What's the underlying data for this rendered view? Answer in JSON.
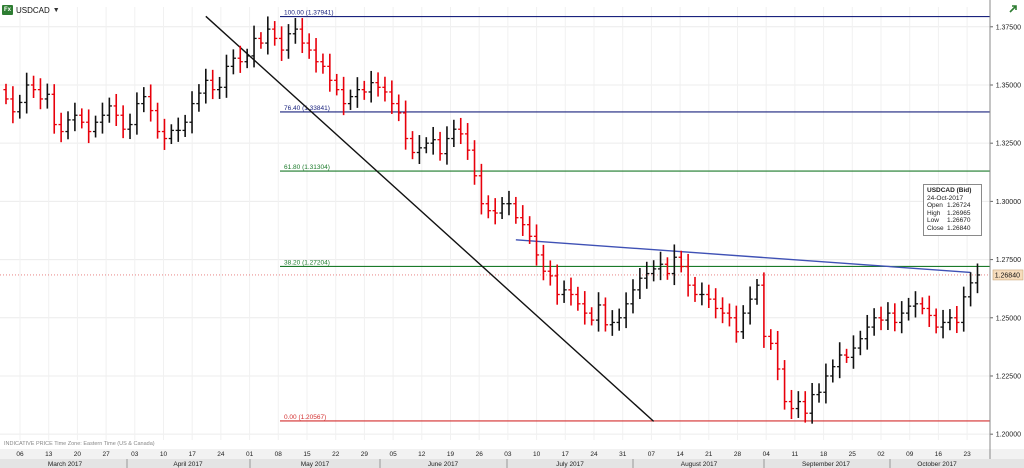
{
  "header": {
    "badge": "Fx",
    "symbol": "USDCAD",
    "caret": "▼",
    "trend_icon": "trend-arrow-icon"
  },
  "legend": {
    "title": "USDCAD (Bid)",
    "date": "24-Oct-2017",
    "rows": [
      {
        "label": "Open",
        "value": "1.26724"
      },
      {
        "label": "High",
        "value": "1.26965"
      },
      {
        "label": "Low",
        "value": "1.26670"
      },
      {
        "label": "Close",
        "value": "1.26840"
      }
    ]
  },
  "footnote": "INDICATIVE PRICE  Time Zone: Eastern Time (US & Canada)",
  "colors": {
    "up": "#111111",
    "down": "#e8000b",
    "fib_blue": "#1a237e",
    "fib_green": "#1b7a2a",
    "fib_red": "#d32f2f",
    "trendline": "#3f51b5",
    "price_tag": "#f6dcbc"
  },
  "chart_data": {
    "type": "ohlc",
    "title": "",
    "ylim": [
      1.1975,
      1.3835
    ],
    "y_ticks": [
      "1.37500",
      "1.35000",
      "1.32500",
      "1.30000",
      "1.27500",
      "1.25000",
      "1.22500",
      "1.20000"
    ],
    "y_tick_values": [
      1.375,
      1.35,
      1.325,
      1.3,
      1.275,
      1.25,
      1.225,
      1.2
    ],
    "last_price": "1.26840",
    "day_labels": [
      "06",
      "13",
      "20",
      "27",
      "03",
      "10",
      "17",
      "24",
      "01",
      "08",
      "15",
      "22",
      "29",
      "05",
      "12",
      "19",
      "26",
      "03",
      "10",
      "17",
      "24",
      "31",
      "07",
      "14",
      "21",
      "28",
      "04",
      "11",
      "18",
      "25",
      "02",
      "09",
      "16",
      "23"
    ],
    "month_labels": [
      "March 2017",
      "April 2017",
      "May 2017",
      "June 2017",
      "July 2017",
      "August 2017",
      "September 2017",
      "October 2017"
    ],
    "fib_levels": [
      {
        "label": "100.00 (1.37941)",
        "value": 1.37941,
        "color": "blue"
      },
      {
        "label": "76.40 (1.33841)",
        "value": 1.33841,
        "color": "blue"
      },
      {
        "label": "61.80 (1.31304)",
        "value": 1.31304,
        "color": "green"
      },
      {
        "label": "38.20 (1.27204)",
        "value": 1.27204,
        "color": "green"
      },
      {
        "label": "0.00 (1.20567)",
        "value": 1.20567,
        "color": "red"
      }
    ],
    "trendlines": [
      {
        "name": "downtrend",
        "x1": 29,
        "y1": 1.3795,
        "x2": 94,
        "y2": 1.2055
      },
      {
        "name": "resistance",
        "x1": 74,
        "y1": 1.2835,
        "x2": 140,
        "y2": 1.2695
      }
    ],
    "close": [
      1.344,
      1.3385,
      1.3425,
      1.35,
      1.348,
      1.344,
      1.346,
      1.333,
      1.33,
      1.335,
      1.337,
      1.334,
      1.33,
      1.334,
      1.337,
      1.341,
      1.337,
      1.331,
      1.333,
      1.342,
      1.345,
      1.339,
      1.33,
      1.327,
      1.3305,
      1.3305,
      1.334,
      1.342,
      1.3465,
      1.352,
      1.348,
      1.349,
      1.358,
      1.3615,
      1.36,
      1.3625,
      1.37,
      1.368,
      1.374,
      1.37,
      1.365,
      1.372,
      1.374,
      1.368,
      1.365,
      1.36,
      1.358,
      1.352,
      1.348,
      1.342,
      1.345,
      1.348,
      1.347,
      1.351,
      1.349,
      1.347,
      1.342,
      1.338,
      1.327,
      1.321,
      1.323,
      1.325,
      1.3265,
      1.3205,
      1.327,
      1.331,
      1.329,
      1.322,
      1.311,
      1.299,
      1.296,
      1.295,
      1.299,
      1.299,
      1.293,
      1.29,
      1.285,
      1.277,
      1.27,
      1.268,
      1.26,
      1.262,
      1.26,
      1.256,
      1.252,
      1.249,
      1.2555,
      1.247,
      1.248,
      1.25,
      1.256,
      1.262,
      1.267,
      1.269,
      1.271,
      1.273,
      1.269,
      1.276,
      1.272,
      1.264,
      1.26,
      1.26,
      1.258,
      1.254,
      1.252,
      1.25,
      1.244,
      1.252,
      1.258,
      1.264,
      1.242,
      1.239,
      1.228,
      1.214,
      1.211,
      1.214,
      1.209,
      1.217,
      1.218,
      1.225,
      1.229,
      1.234,
      1.233,
      1.237,
      1.241,
      1.246,
      1.25,
      1.249,
      1.252,
      1.248,
      1.252,
      1.255,
      1.256,
      1.254,
      1.251,
      1.246,
      1.248,
      1.25,
      1.248,
      1.259,
      1.265,
      1.2684
    ]
  }
}
